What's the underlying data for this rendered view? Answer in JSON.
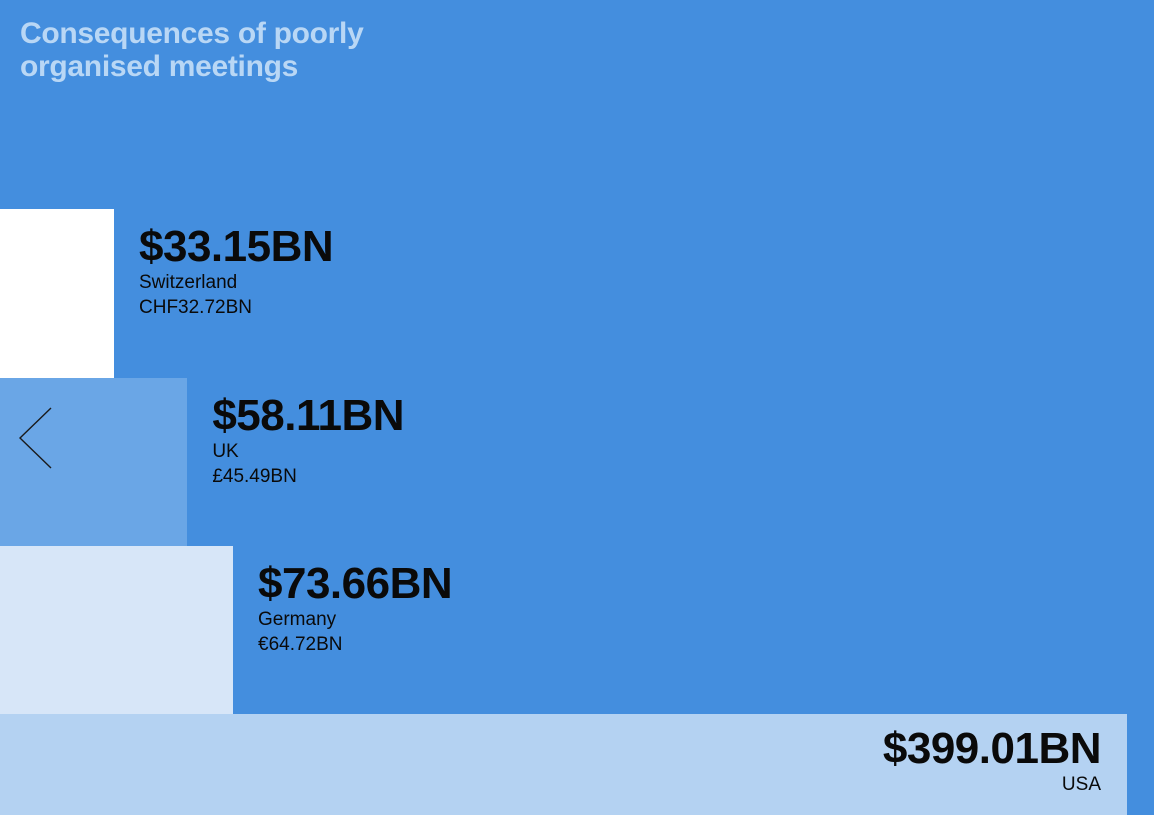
{
  "title": "Consequences of poorly organised meetings",
  "colors": {
    "background": "#448ede",
    "title": "#b9d7f5",
    "label": "#0a0a0a"
  },
  "icons": {
    "back": "chevron-left-icon"
  },
  "chart_data": {
    "type": "bar",
    "orientation": "horizontal",
    "categories": [
      "Switzerland",
      "UK",
      "Germany",
      "USA"
    ],
    "values": [
      33.15,
      58.11,
      73.66,
      399.01
    ],
    "unit": "$BN",
    "value_labels": [
      "$33.15BN",
      "$58.11BN",
      "$73.66BN",
      "$399.01BN"
    ],
    "local_currency_labels": [
      "CHF32.72BN",
      "£45.49BN",
      "€64.72BN",
      ""
    ],
    "bar_colors": [
      "#ffffff",
      "#6aa6e6",
      "#d7e6f8",
      "#b4d2f2"
    ],
    "title": "Consequences of poorly organised meetings",
    "grid": false,
    "legend": "none"
  }
}
